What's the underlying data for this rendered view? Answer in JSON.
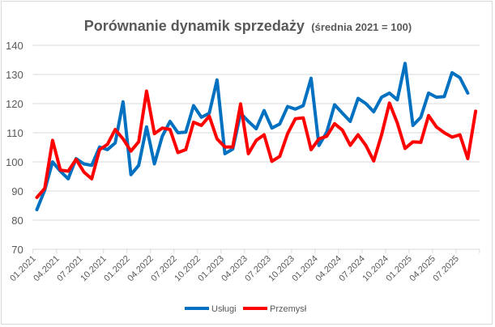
{
  "chart_data": {
    "type": "line",
    "title": "Porównanie dynamik sprzedaży",
    "subtitle": "(średnia 2021 = 100)",
    "xlabel": "",
    "ylabel": "",
    "ylim": [
      70,
      140
    ],
    "yticks": [
      "70",
      "80",
      "90",
      "100",
      "110",
      "120",
      "130",
      "140"
    ],
    "grid": true,
    "legend_position": "bottom",
    "categories": [
      "01.2021",
      "02.2021",
      "03.2021",
      "04.2021",
      "05.2021",
      "06.2021",
      "07.2021",
      "08.2021",
      "09.2021",
      "10.2021",
      "11.2021",
      "12.2021",
      "01.2022",
      "02.2022",
      "03.2022",
      "04.2022",
      "05.2022",
      "06.2022",
      "07.2022",
      "08.2022",
      "09.2022",
      "10.2022",
      "11.2022",
      "12.2022",
      "01.2023",
      "02.2023",
      "03.2023",
      "04.2023",
      "05.2023",
      "06.2023",
      "07.2023",
      "08.2023",
      "09.2023",
      "10.2023",
      "11.2023",
      "12.2023",
      "01.2024",
      "02.2024",
      "03.2024",
      "04.2024",
      "05.2024",
      "06.2024",
      "07.2024",
      "08.2024",
      "09.2024",
      "10.2024",
      "11.2024",
      "12.2024",
      "01.2025",
      "02.2025",
      "03.2025",
      "04.2025",
      "05.2025",
      "06.2025",
      "07.2025",
      "08.2025",
      "09.2025"
    ],
    "series": [
      {
        "name": "Usługi",
        "color": "#0070c0",
        "values": [
          83.6,
          90.3,
          100,
          96.8,
          94.2,
          101.1,
          99.3,
          98.8,
          105.1,
          104.2,
          106.5,
          120.6,
          95.6,
          98.8,
          112,
          99.3,
          108.8,
          113.9,
          110,
          110.2,
          119.3,
          115.3,
          116.7,
          128.1,
          102.8,
          104.4,
          116.7,
          113.9,
          111.4,
          117.6,
          111.6,
          113,
          119,
          118.1,
          119.3,
          128.7,
          105.6,
          110.2,
          119.6,
          116.7,
          113.9,
          121.8,
          120,
          117.2,
          122.2,
          123.6,
          121.3,
          133.8,
          112.5,
          115.3,
          123.6,
          122.2,
          122.4,
          130.6,
          128.9,
          123.6,
          null
        ]
      },
      {
        "name": "Przemysł",
        "color": "#ff0000",
        "values": [
          87.8,
          90.9,
          107.4,
          97.2,
          96.8,
          100.9,
          96.5,
          94.2,
          104.2,
          106,
          111.1,
          107.9,
          103.7,
          106.9,
          124.3,
          109.7,
          111.6,
          111.1,
          103.2,
          104.2,
          113.6,
          112.5,
          115.7,
          107.9,
          105.1,
          105.1,
          119.9,
          102.8,
          107.4,
          109.3,
          100.2,
          101.9,
          109.7,
          114.8,
          115.1,
          104.2,
          107.9,
          108.8,
          113.1,
          110.9,
          105.7,
          109.3,
          105.6,
          100.3,
          109.3,
          120.2,
          113.4,
          104.6,
          106.9,
          106.7,
          115.9,
          112,
          110,
          108.5,
          109.3,
          101.1,
          117.4
        ]
      }
    ]
  }
}
